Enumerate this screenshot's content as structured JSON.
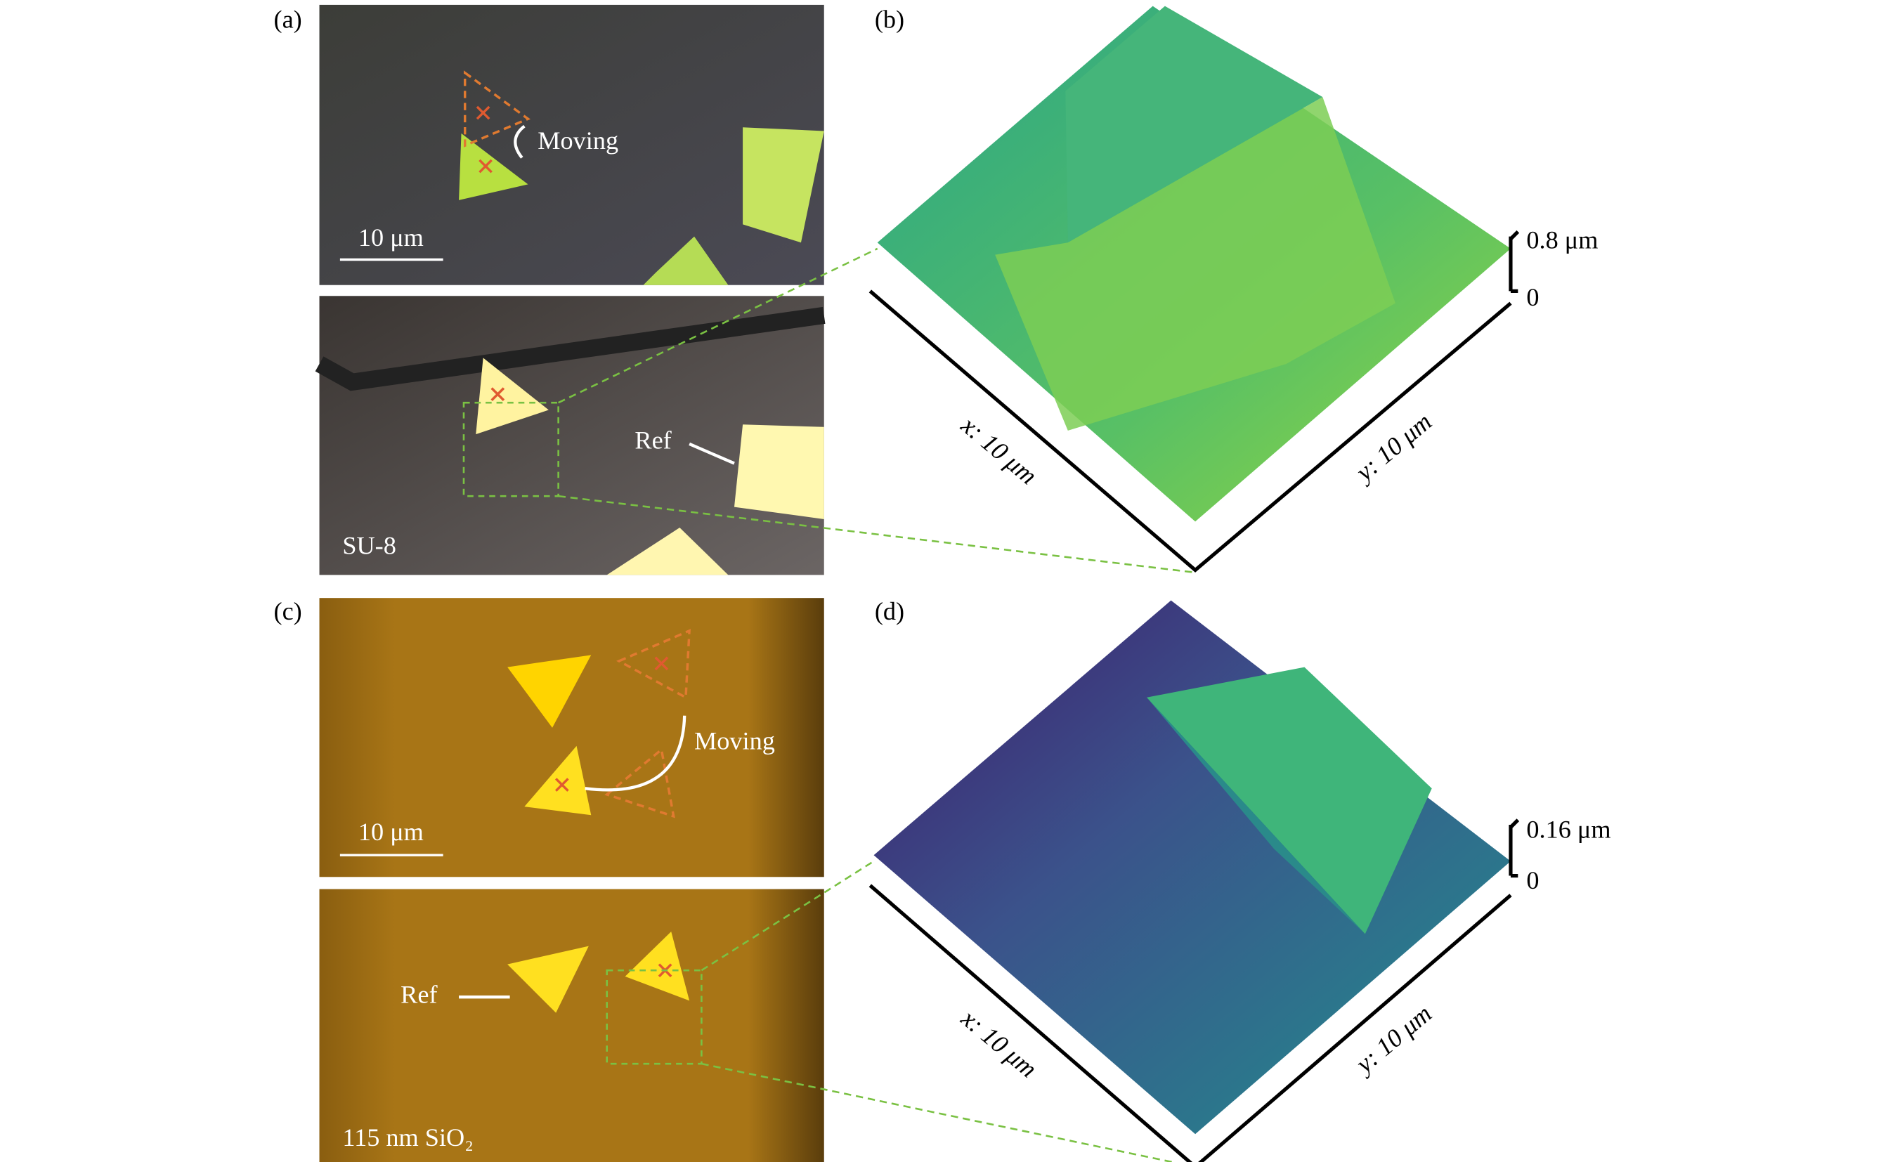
{
  "panels": [
    {
      "label": "(a)",
      "images": [
        {
          "annotation": "Moving",
          "scale_bar": "10 μm"
        },
        {
          "annotation": "Ref",
          "substrate": "SU-8"
        }
      ]
    },
    {
      "label": "(b)",
      "z_max": "0.8 μm",
      "z_min": "0",
      "x_axis": "x: 10 μm",
      "y_axis": "y: 10 μm"
    },
    {
      "label": "(c)",
      "images": [
        {
          "annotation": "Moving",
          "scale_bar": "10 μm"
        },
        {
          "annotation": "Ref",
          "substrate": "115 nm SiO₂"
        }
      ]
    },
    {
      "label": "(d)",
      "z_max": "0.16 μm",
      "z_min": "0",
      "x_axis": "x: 10 μm",
      "y_axis": "y: 10 μm"
    }
  ]
}
